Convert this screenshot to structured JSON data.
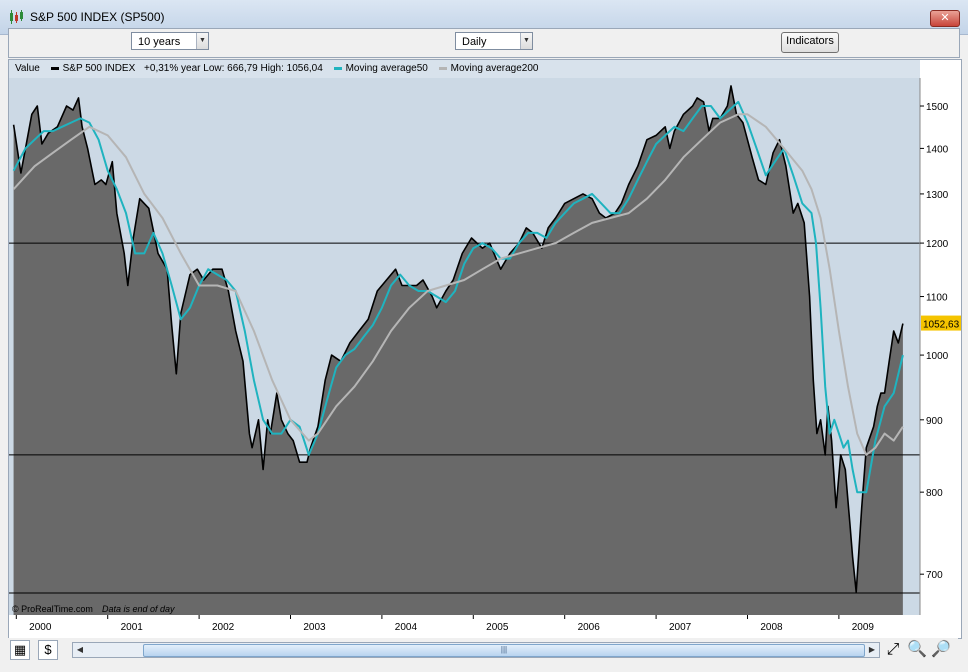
{
  "window": {
    "title": "S&P 500 INDEX (SP500)",
    "close_label": "✕"
  },
  "toolbar": {
    "period": "10 years",
    "interval": "Daily",
    "indicators_label": "Indicators"
  },
  "legend": {
    "value_label": "Value",
    "series_label": "S&P 500 INDEX",
    "stats": "+0,31%  year Low: 666,79 High: 1056,04",
    "ma50_label": "Moving average50",
    "ma200_label": "Moving average200"
  },
  "watermark": {
    "brand": "© ProRealTime.com",
    "note": "Data is end of day"
  },
  "colors": {
    "price": "#000000",
    "area": "#696969",
    "ma50": "#1fb3bf",
    "ma200": "#b5b5b5",
    "plot_bg": "#ccd9e5",
    "last_tag": "#f5c400"
  },
  "chart_data": {
    "type": "line",
    "title": "S&P 500 INDEX (SP500)",
    "y_scale": "log",
    "ylim": [
      655,
      1570
    ],
    "xlim": [
      1999.92,
      2009.8
    ],
    "x_ticks": [
      2000,
      2001,
      2002,
      2003,
      2004,
      2005,
      2006,
      2007,
      2008,
      2009
    ],
    "y_ticks": [
      700,
      800,
      900,
      1000,
      1100,
      1200,
      1300,
      1400,
      1500
    ],
    "horizontal_lines": [
      1200,
      850
    ],
    "last_value": "1052,63",
    "series": [
      {
        "name": "S&P 500 INDEX",
        "x": [
          1999.97,
          2000.05,
          2000.1,
          2000.17,
          2000.23,
          2000.28,
          2000.35,
          2000.45,
          2000.55,
          2000.62,
          2000.68,
          2000.72,
          2000.78,
          2000.86,
          2000.93,
          2000.98,
          2001.05,
          2001.1,
          2001.18,
          2001.22,
          2001.28,
          2001.35,
          2001.45,
          2001.55,
          2001.65,
          2001.7,
          2001.75,
          2001.8,
          2001.9,
          2001.98,
          2002.05,
          2002.15,
          2002.25,
          2002.32,
          2002.4,
          2002.48,
          2002.55,
          2002.58,
          2002.65,
          2002.7,
          2002.75,
          2002.78,
          2002.85,
          2002.9,
          2002.97,
          2003.03,
          2003.1,
          2003.18,
          2003.22,
          2003.3,
          2003.38,
          2003.45,
          2003.55,
          2003.65,
          2003.75,
          2003.85,
          2003.95,
          2004.05,
          2004.15,
          2004.22,
          2004.3,
          2004.38,
          2004.45,
          2004.55,
          2004.6,
          2004.7,
          2004.78,
          2004.88,
          2004.98,
          2005.1,
          2005.18,
          2005.25,
          2005.3,
          2005.4,
          2005.5,
          2005.58,
          2005.65,
          2005.75,
          2005.82,
          2005.9,
          2006.0,
          2006.1,
          2006.2,
          2006.3,
          2006.38,
          2006.45,
          2006.55,
          2006.62,
          2006.7,
          2006.8,
          2006.9,
          2007.0,
          2007.1,
          2007.15,
          2007.2,
          2007.3,
          2007.4,
          2007.45,
          2007.52,
          2007.58,
          2007.62,
          2007.7,
          2007.78,
          2007.82,
          2007.88,
          2007.95,
          2008.05,
          2008.12,
          2008.2,
          2008.28,
          2008.35,
          2008.42,
          2008.5,
          2008.55,
          2008.62,
          2008.68,
          2008.72,
          2008.76,
          2008.8,
          2008.85,
          2008.88,
          2008.92,
          2008.97,
          2009.02,
          2009.07,
          2009.12,
          2009.15,
          2009.19,
          2009.25,
          2009.3,
          2009.38,
          2009.42,
          2009.46,
          2009.5,
          2009.55,
          2009.6,
          2009.65,
          2009.7
        ],
        "values": [
          1455,
          1345,
          1400,
          1480,
          1500,
          1410,
          1435,
          1450,
          1500,
          1490,
          1520,
          1450,
          1400,
          1320,
          1330,
          1320,
          1370,
          1260,
          1180,
          1120,
          1210,
          1290,
          1270,
          1180,
          1150,
          1050,
          970,
          1070,
          1140,
          1150,
          1130,
          1150,
          1150,
          1110,
          1040,
          990,
          880,
          860,
          900,
          830,
          900,
          880,
          940,
          900,
          880,
          870,
          840,
          840,
          860,
          890,
          960,
          1000,
          990,
          1020,
          1040,
          1060,
          1110,
          1130,
          1150,
          1120,
          1120,
          1120,
          1130,
          1100,
          1080,
          1110,
          1130,
          1180,
          1210,
          1190,
          1200,
          1170,
          1150,
          1180,
          1200,
          1230,
          1220,
          1190,
          1230,
          1250,
          1280,
          1290,
          1300,
          1290,
          1260,
          1250,
          1260,
          1280,
          1320,
          1360,
          1420,
          1430,
          1450,
          1400,
          1440,
          1480,
          1500,
          1520,
          1510,
          1440,
          1470,
          1470,
          1500,
          1550,
          1480,
          1460,
          1380,
          1330,
          1320,
          1390,
          1420,
          1360,
          1260,
          1280,
          1240,
          1100,
          960,
          880,
          900,
          850,
          920,
          870,
          780,
          850,
          830,
          760,
          720,
          680,
          780,
          860,
          890,
          920,
          940,
          940,
          990,
          1040,
          1020,
          1052.63
        ]
      },
      {
        "name": "Moving average50",
        "x": [
          1999.97,
          2000.1,
          2000.2,
          2000.3,
          2000.4,
          2000.5,
          2000.6,
          2000.7,
          2000.8,
          2000.9,
          2001.0,
          2001.1,
          2001.2,
          2001.3,
          2001.4,
          2001.5,
          2001.6,
          2001.7,
          2001.8,
          2001.9,
          2002.0,
          2002.1,
          2002.2,
          2002.3,
          2002.4,
          2002.5,
          2002.6,
          2002.7,
          2002.8,
          2002.9,
          2003.0,
          2003.1,
          2003.2,
          2003.3,
          2003.4,
          2003.5,
          2003.6,
          2003.7,
          2003.8,
          2003.9,
          2004.0,
          2004.1,
          2004.2,
          2004.3,
          2004.4,
          2004.5,
          2004.6,
          2004.7,
          2004.8,
          2004.9,
          2005.0,
          2005.1,
          2005.2,
          2005.3,
          2005.4,
          2005.5,
          2005.6,
          2005.7,
          2005.8,
          2005.9,
          2006.0,
          2006.1,
          2006.2,
          2006.3,
          2006.4,
          2006.5,
          2006.6,
          2006.7,
          2006.8,
          2006.9,
          2007.0,
          2007.1,
          2007.2,
          2007.3,
          2007.4,
          2007.5,
          2007.6,
          2007.7,
          2007.8,
          2007.9,
          2008.0,
          2008.1,
          2008.2,
          2008.3,
          2008.4,
          2008.5,
          2008.6,
          2008.7,
          2008.75,
          2008.8,
          2008.85,
          2008.9,
          2008.95,
          2009.0,
          2009.05,
          2009.1,
          2009.15,
          2009.2,
          2009.3,
          2009.4,
          2009.5,
          2009.6,
          2009.7
        ],
        "values": [
          1350,
          1400,
          1420,
          1440,
          1440,
          1450,
          1460,
          1470,
          1460,
          1420,
          1350,
          1310,
          1260,
          1180,
          1180,
          1220,
          1180,
          1120,
          1060,
          1080,
          1120,
          1150,
          1140,
          1130,
          1110,
          1040,
          960,
          900,
          880,
          880,
          900,
          890,
          850,
          880,
          930,
          980,
          1000,
          1010,
          1030,
          1050,
          1080,
          1120,
          1140,
          1120,
          1110,
          1110,
          1100,
          1090,
          1110,
          1160,
          1190,
          1200,
          1190,
          1170,
          1170,
          1200,
          1220,
          1220,
          1210,
          1240,
          1260,
          1280,
          1290,
          1300,
          1280,
          1260,
          1260,
          1290,
          1330,
          1370,
          1410,
          1430,
          1450,
          1440,
          1470,
          1500,
          1500,
          1470,
          1490,
          1510,
          1460,
          1400,
          1340,
          1370,
          1400,
          1340,
          1280,
          1260,
          1200,
          1080,
          950,
          880,
          900,
          880,
          860,
          870,
          830,
          800,
          800,
          870,
          920,
          940,
          1000
        ]
      },
      {
        "name": "Moving average200",
        "x": [
          1999.97,
          2000.2,
          2000.4,
          2000.6,
          2000.8,
          2001.0,
          2001.2,
          2001.4,
          2001.6,
          2001.8,
          2002.0,
          2002.2,
          2002.4,
          2002.6,
          2002.8,
          2003.0,
          2003.2,
          2003.3,
          2003.5,
          2003.7,
          2003.9,
          2004.1,
          2004.3,
          2004.5,
          2004.7,
          2004.9,
          2005.1,
          2005.3,
          2005.5,
          2005.7,
          2005.9,
          2006.1,
          2006.3,
          2006.5,
          2006.7,
          2006.9,
          2007.1,
          2007.3,
          2007.5,
          2007.7,
          2007.9,
          2008.0,
          2008.2,
          2008.4,
          2008.6,
          2008.7,
          2008.8,
          2008.9,
          2009.0,
          2009.1,
          2009.2,
          2009.3,
          2009.4,
          2009.5,
          2009.6,
          2009.7
        ],
        "values": [
          1310,
          1360,
          1390,
          1420,
          1450,
          1430,
          1380,
          1300,
          1250,
          1180,
          1120,
          1120,
          1110,
          1040,
          960,
          900,
          870,
          880,
          920,
          950,
          990,
          1040,
          1080,
          1110,
          1120,
          1130,
          1150,
          1170,
          1180,
          1190,
          1200,
          1220,
          1240,
          1250,
          1260,
          1290,
          1330,
          1380,
          1420,
          1460,
          1480,
          1480,
          1450,
          1400,
          1350,
          1310,
          1250,
          1150,
          1040,
          950,
          880,
          850,
          860,
          880,
          870,
          890
        ]
      }
    ]
  }
}
